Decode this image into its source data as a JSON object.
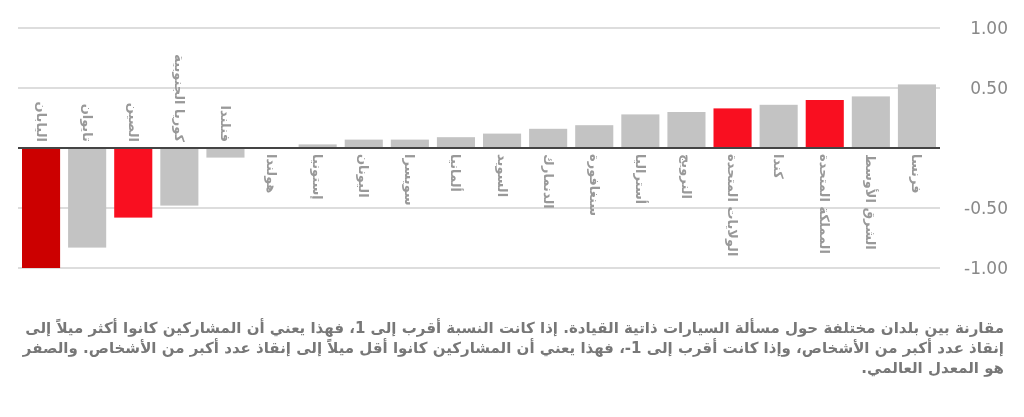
{
  "chart_data": {
    "type": "bar",
    "categories": [
      "اليابان",
      "تايوان",
      "الصين",
      "كوريا الجنوبية",
      "فنلندا",
      "هولندا",
      "إستونيا",
      "اليونان",
      "سويسرا",
      "ألمانيا",
      "السويد",
      "الدنمارك",
      "سنغافورة",
      "أستراليا",
      "النرويج",
      "الولايات المتحدة",
      "كندا",
      "المملكة المتحدة",
      "الشرق الأوسط",
      "فرنسا"
    ],
    "values": [
      -1.0,
      -0.83,
      -0.58,
      -0.48,
      -0.08,
      0,
      0.03,
      0.07,
      0.07,
      0.09,
      0.12,
      0.16,
      0.19,
      0.28,
      0.3,
      0.33,
      0.36,
      0.4,
      0.43,
      0.53
    ],
    "colors": [
      "#cc0000",
      "#c3c3c3",
      "#f90f20",
      "#c3c3c3",
      "#c3c3c3",
      "#c3c3c3",
      "#c3c3c3",
      "#c3c3c3",
      "#c3c3c3",
      "#c3c3c3",
      "#c3c3c3",
      "#c3c3c3",
      "#c3c3c3",
      "#c3c3c3",
      "#c3c3c3",
      "#f90f20",
      "#c3c3c3",
      "#f90f20",
      "#c3c3c3",
      "#c3c3c3"
    ],
    "ylim": [
      -1,
      1
    ],
    "yticks": [
      {
        "value": 1,
        "label": "1.00"
      },
      {
        "value": 0.5,
        "label": "0.50"
      },
      {
        "value": -0.5,
        "label": "-0.50"
      },
      {
        "value": -1,
        "label": "-1.00"
      }
    ],
    "grid": "y",
    "annotations": [
      "مقارنة بين بلدان مختلفة حول مسألة السيارات ذاتية القيادة. إذا كانت النسبة أقرب إلى 1، فهذا يعني أن المشاركين كانوا أكثر ميلاً إلى إنقاذ عدد أكبر من الأشخاص، وإذا كانت أقرب إلى 1-، فهذا يعني أن المشاركين كانوا أقل ميلاً إلى إنقاذ عدد أكبر من الأشخاص. والصفر هو المعدل العالمي."
    ]
  }
}
